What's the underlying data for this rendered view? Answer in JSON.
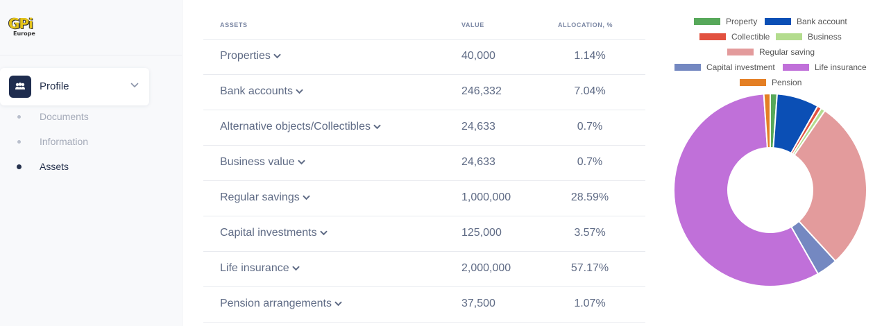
{
  "logo": {
    "mark": "GPi",
    "sub": "Europe"
  },
  "sidebar": {
    "profile": {
      "label": "Profile",
      "icon": "users-icon"
    },
    "items": [
      {
        "label": "Documents",
        "active": false
      },
      {
        "label": "Information",
        "active": false
      },
      {
        "label": "Assets",
        "active": true
      }
    ]
  },
  "table": {
    "headers": {
      "assets": "ASSETS",
      "value": "VALUE",
      "allocation": "ALLOCATION, %"
    },
    "rows": [
      {
        "name": "Properties",
        "value": "40,000",
        "allocation": "1.14%"
      },
      {
        "name": "Bank accounts",
        "value": "246,332",
        "allocation": "7.04%"
      },
      {
        "name": "Alternative objects/Collectibles",
        "value": "24,633",
        "allocation": "0.7%"
      },
      {
        "name": "Business value",
        "value": "24,633",
        "allocation": "0.7%"
      },
      {
        "name": "Regular savings",
        "value": "1,000,000",
        "allocation": "28.59%"
      },
      {
        "name": "Capital investments",
        "value": "125,000",
        "allocation": "3.57%"
      },
      {
        "name": "Life insurance",
        "value": "2,000,000",
        "allocation": "57.17%"
      },
      {
        "name": "Pension arrangements",
        "value": "37,500",
        "allocation": "1.07%"
      }
    ]
  },
  "chart_data": {
    "type": "pie",
    "donut": true,
    "legend_position": "top",
    "categories": [
      "Property",
      "Bank account",
      "Collectible",
      "Business",
      "Regular saving",
      "Capital investment",
      "Life insurance",
      "Pension"
    ],
    "values": [
      40000,
      246332,
      24633,
      24633,
      1000000,
      125000,
      2000000,
      37500
    ],
    "colors": [
      "#57a85a",
      "#0b4fb5",
      "#e2513f",
      "#b3dc8e",
      "#e39b9c",
      "#7488c1",
      "#c070d9",
      "#e47f24"
    ]
  }
}
